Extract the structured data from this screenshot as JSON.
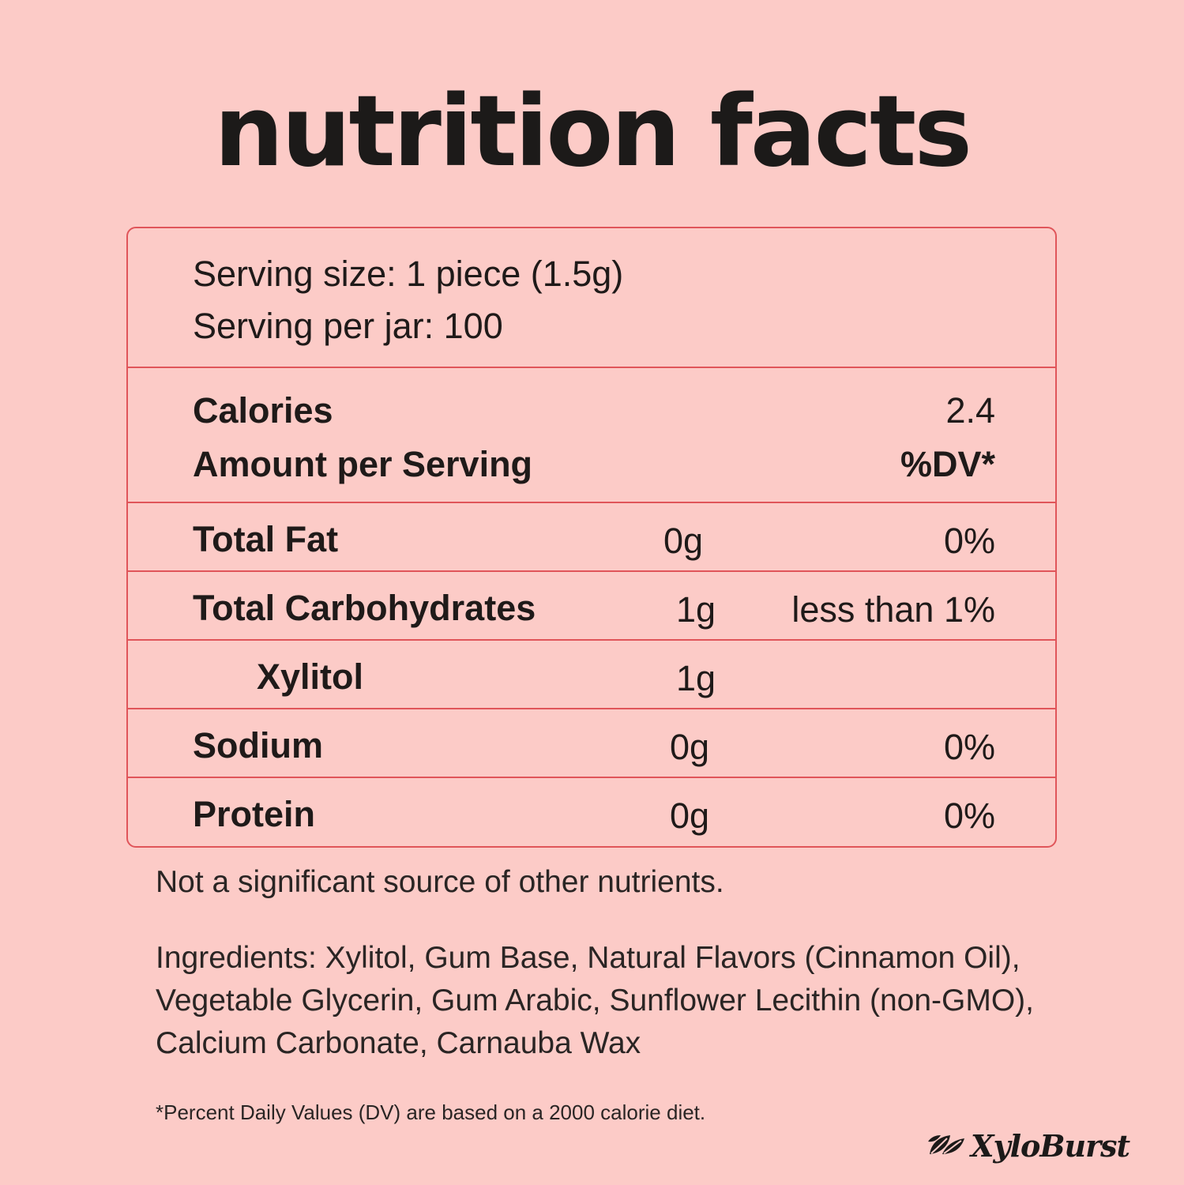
{
  "header": {
    "title": "nutrition facts"
  },
  "serving": {
    "size": "Serving size: 1 piece (1.5g)",
    "per_jar": "Serving per jar: 100"
  },
  "calories": {
    "label": "Calories",
    "value": "2.4",
    "amount_label": "Amount per Serving",
    "dv_label": "%DV*"
  },
  "nutrients": [
    {
      "name": "Total Fat",
      "amount": "0g",
      "dv": "0%"
    },
    {
      "name": "Total Carbohydrates",
      "amount": "1g",
      "dv": "less than 1%"
    },
    {
      "name": "Xylitol",
      "amount": "1g",
      "dv": ""
    },
    {
      "name": "Sodium",
      "amount": "0g",
      "dv": "0%"
    },
    {
      "name": "Protein",
      "amount": "0g",
      "dv": "0%"
    }
  ],
  "notes": {
    "not_significant": "Not a significant source of other nutrients.",
    "ingredients_line1": "Ingredients: Xylitol, Gum Base, Natural Flavors (Cinnamon Oil),",
    "ingredients_line2": "Vegetable Glycerin, Gum Arabic, Sunflower Lecithin (non-GMO),",
    "ingredients_line3": "Calcium Carbonate, Carnauba Wax",
    "footnote": "*Percent Daily Values (DV) are based on a 2000 calorie diet."
  },
  "brand": {
    "name": "XyloBurst",
    "icon": "leaf-icon"
  },
  "colors": {
    "background": "#fccbc7",
    "border": "#e0555a",
    "text": "#1f1a19"
  }
}
